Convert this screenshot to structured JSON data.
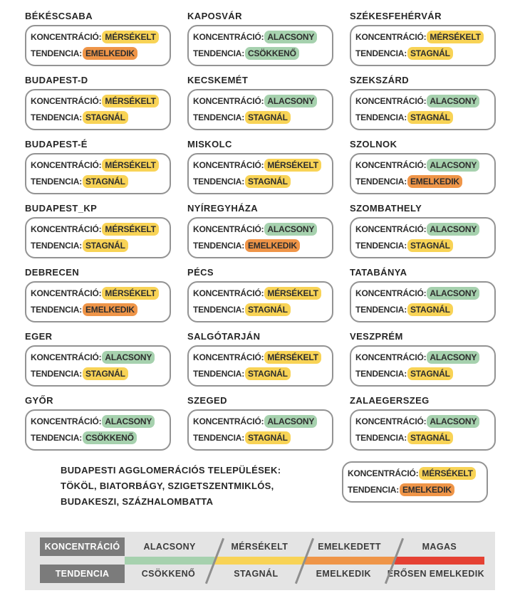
{
  "colors": {
    "green": "#a6d1ae",
    "yellow": "#f8d356",
    "orange": "#ef9548",
    "red": "#e54133"
  },
  "labels": {
    "concentration": "KONCENTRÁCIÓ:",
    "tendency": "TENDENCIA:"
  },
  "cities": [
    {
      "name": "BÉKÉSCSABA",
      "concentration": "MÉRSÉKELT",
      "concentration_color": "yellow",
      "tendency": "EMELKEDIK",
      "tendency_color": "orange"
    },
    {
      "name": "KAPOSVÁR",
      "concentration": "ALACSONY",
      "concentration_color": "green",
      "tendency": "CSÖKKENŐ",
      "tendency_color": "green"
    },
    {
      "name": "SZÉKESFEHÉRVÁR",
      "concentration": "MÉRSÉKELT",
      "concentration_color": "yellow",
      "tendency": "STAGNÁL",
      "tendency_color": "yellow"
    },
    {
      "name": "BUDAPEST-D",
      "concentration": "MÉRSÉKELT",
      "concentration_color": "yellow",
      "tendency": "STAGNÁL",
      "tendency_color": "yellow"
    },
    {
      "name": "KECSKEMÉT",
      "concentration": "ALACSONY",
      "concentration_color": "green",
      "tendency": "STAGNÁL",
      "tendency_color": "yellow"
    },
    {
      "name": "SZEKSZÁRD",
      "concentration": "ALACSONY",
      "concentration_color": "green",
      "tendency": "STAGNÁL",
      "tendency_color": "yellow"
    },
    {
      "name": "BUDAPEST-É",
      "concentration": "MÉRSÉKELT",
      "concentration_color": "yellow",
      "tendency": "STAGNÁL",
      "tendency_color": "yellow"
    },
    {
      "name": "MISKOLC",
      "concentration": "MÉRSÉKELT",
      "concentration_color": "yellow",
      "tendency": "STAGNÁL",
      "tendency_color": "yellow"
    },
    {
      "name": "SZOLNOK",
      "concentration": "ALACSONY",
      "concentration_color": "green",
      "tendency": "EMELKEDIK",
      "tendency_color": "orange"
    },
    {
      "name": "BUDAPEST_KP",
      "concentration": "MÉRSÉKELT",
      "concentration_color": "yellow",
      "tendency": "STAGNÁL",
      "tendency_color": "yellow"
    },
    {
      "name": "NYÍREGYHÁZA",
      "concentration": "ALACSONY",
      "concentration_color": "green",
      "tendency": "EMELKEDIK",
      "tendency_color": "orange"
    },
    {
      "name": "SZOMBATHELY",
      "concentration": "ALACSONY",
      "concentration_color": "green",
      "tendency": "STAGNÁL",
      "tendency_color": "yellow"
    },
    {
      "name": "DEBRECEN",
      "concentration": "MÉRSÉKELT",
      "concentration_color": "yellow",
      "tendency": "EMELKEDIK",
      "tendency_color": "orange"
    },
    {
      "name": "PÉCS",
      "concentration": "MÉRSÉKELT",
      "concentration_color": "yellow",
      "tendency": "STAGNÁL",
      "tendency_color": "yellow"
    },
    {
      "name": "TATABÁNYA",
      "concentration": "ALACSONY",
      "concentration_color": "green",
      "tendency": "STAGNÁL",
      "tendency_color": "yellow"
    },
    {
      "name": "EGER",
      "concentration": "ALACSONY",
      "concentration_color": "green",
      "tendency": "STAGNÁL",
      "tendency_color": "yellow"
    },
    {
      "name": "SALGÓTARJÁN",
      "concentration": "MÉRSÉKELT",
      "concentration_color": "yellow",
      "tendency": "STAGNÁL",
      "tendency_color": "yellow"
    },
    {
      "name": "VESZPRÉM",
      "concentration": "ALACSONY",
      "concentration_color": "green",
      "tendency": "STAGNÁL",
      "tendency_color": "yellow"
    },
    {
      "name": "GYŐR",
      "concentration": "ALACSONY",
      "concentration_color": "green",
      "tendency": "CSÖKKENŐ",
      "tendency_color": "green"
    },
    {
      "name": "SZEGED",
      "concentration": "ALACSONY",
      "concentration_color": "green",
      "tendency": "STAGNÁL",
      "tendency_color": "yellow"
    },
    {
      "name": "ZALAEGERSZEG",
      "concentration": "ALACSONY",
      "concentration_color": "green",
      "tendency": "STAGNÁL",
      "tendency_color": "yellow"
    }
  ],
  "agglomeration": {
    "lines": [
      "BUDAPESTI AGGLOMERÁCIÓS TELEPÜLÉSEK:",
      "TÖKÖL, BIATORBÁGY, SZIGETSZENTMIKLÓS,",
      "BUDAKESZI, SZÁZHALOMBATTA"
    ],
    "concentration": "MÉRSÉKELT",
    "concentration_color": "yellow",
    "tendency": "EMELKEDIK",
    "tendency_color": "orange"
  },
  "legend": {
    "concentration_label": "KONCENTRÁCIÓ",
    "tendency_label": "TENDENCIA",
    "concentration_levels": [
      "ALACSONY",
      "MÉRSÉKELT",
      "EMELKEDETT",
      "MAGAS"
    ],
    "tendency_levels": [
      "CSÖKKENŐ",
      "STAGNÁL",
      "EMELKEDIK",
      "ERŐSEN EMELKEDIK"
    ],
    "bar_colors": [
      "#a6d1ae",
      "#f8d356",
      "#ef9548",
      "#e54133"
    ]
  }
}
